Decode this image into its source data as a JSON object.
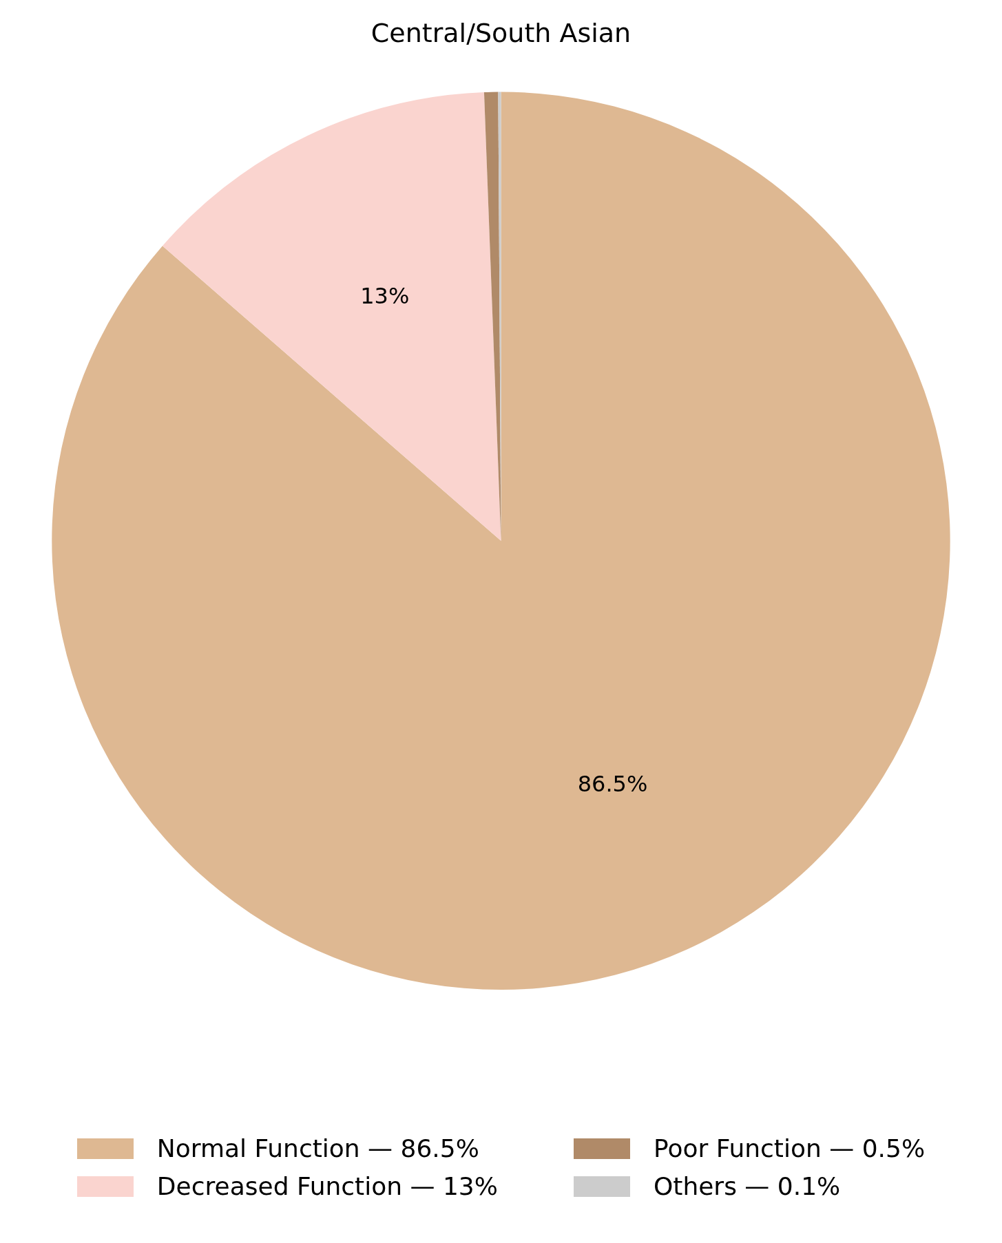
{
  "chart_data": {
    "type": "pie",
    "title": "Central/South Asian",
    "categories": [
      "Normal Function — 86.5%",
      "Decreased Function — 13%",
      "Poor Function — 0.5%",
      "Others — 0.1%"
    ],
    "values": [
      86.5,
      13,
      0.5,
      0.1
    ],
    "colors": [
      "#deb892",
      "#fad4cf",
      "#b08a68",
      "#cccccc"
    ],
    "value_labels": [
      "86.5%",
      "13%",
      null,
      null
    ],
    "legend": "bottom"
  }
}
